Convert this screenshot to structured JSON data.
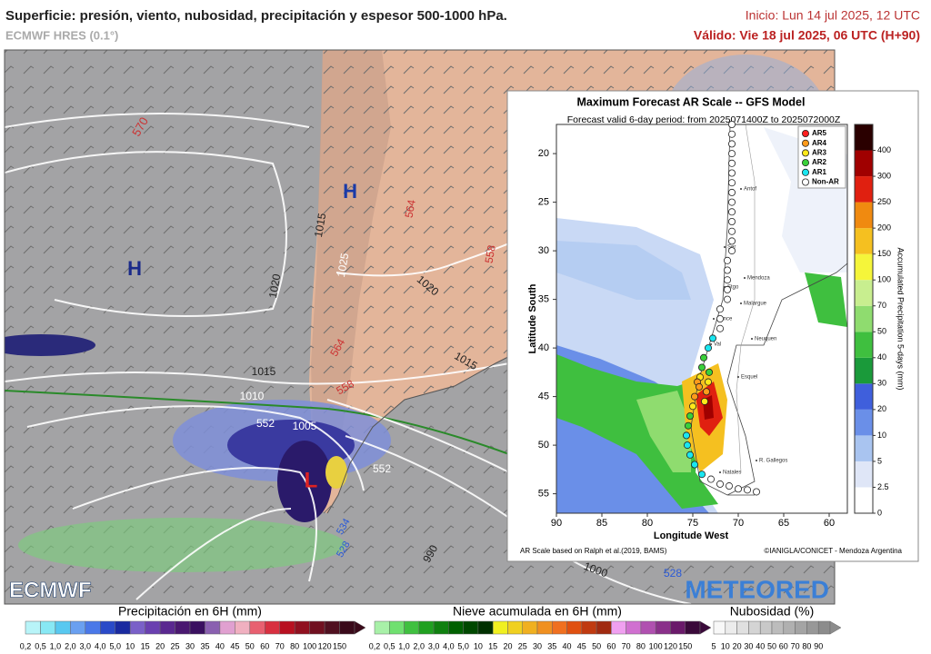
{
  "header": {
    "title": "Superficie: presión, viento, nubosidad, precipitación y espesor 500-1000 hPa.",
    "model": "ECMWF HRES (0.1°)",
    "init": "Inicio: Lun 14 jul 2025, 12 UTC",
    "valid": "Válido: Vie 18 jul 2025, 06 UTC (H+90)"
  },
  "map": {
    "labels": [
      "570",
      "H",
      "H",
      "1015",
      "564",
      "558",
      "1020",
      "1020",
      "1025",
      "1015",
      "1015",
      "1010",
      "552",
      "1005",
      "564",
      "558",
      "L",
      "552",
      "990",
      "1000",
      "528",
      "534",
      "528"
    ]
  },
  "logos": {
    "left": "ECMWF",
    "right": "METEORED"
  },
  "legends": [
    {
      "title": "Precipitación en 6H (mm)",
      "labels": [
        "0,2",
        "0,5",
        "1,0",
        "2,0",
        "3,0",
        "4,0",
        "5,0",
        "10",
        "15",
        "20",
        "25",
        "30",
        "35",
        "40",
        "45",
        "50",
        "60",
        "70",
        "80",
        "100",
        "120",
        "150"
      ]
    },
    {
      "title": "Nieve acumulada en 6H (mm)",
      "labels": [
        "0,2",
        "0,5",
        "1,0",
        "2,0",
        "3,0",
        "4,0",
        "5,0",
        "10",
        "15",
        "20",
        "25",
        "30",
        "35",
        "40",
        "45",
        "50",
        "60",
        "70",
        "80",
        "100",
        "120",
        "150"
      ]
    },
    {
      "title": "Nubosidad (%)",
      "labels": [
        "5",
        "10",
        "20",
        "30",
        "40",
        "50",
        "60",
        "70",
        "80",
        "90"
      ]
    }
  ],
  "inset": {
    "title": "Maximum Forecast AR Scale -- GFS Model",
    "subtitle": "Forecast valid 6-day period: from 2025071400Z to 2025072000Z",
    "xlabel": "Longitude West",
    "ylabel": "Latitude South",
    "xlim": [
      90,
      58
    ],
    "ylim": [
      17,
      57
    ],
    "xticks": [
      90,
      85,
      80,
      75,
      70,
      65,
      60
    ],
    "yticks": [
      20,
      25,
      30,
      35,
      40,
      45,
      50,
      55
    ],
    "colorbar": {
      "label": "Accumulated Precipitation 5-days (mm)",
      "ticks": [
        0,
        2.5,
        5,
        10,
        20,
        30,
        40,
        50,
        70,
        100,
        150,
        200,
        250,
        300,
        400
      ],
      "colors": [
        "#ffffff",
        "#dfe6f7",
        "#a9c4f0",
        "#6a8fe8",
        "#3f5fdc",
        "#1a9a3a",
        "#3fbf3f",
        "#8fdc6f",
        "#c8ee8f",
        "#f5f53a",
        "#f5c020",
        "#f08a10",
        "#e02010",
        "#a00000",
        "#2a0000"
      ]
    },
    "legend": [
      {
        "label": "AR5",
        "ar": 5,
        "color": "#ff2020"
      },
      {
        "label": "AR4",
        "ar": 4,
        "color": "#ff9a1a"
      },
      {
        "label": "AR3",
        "ar": 3,
        "color": "#ffe81a"
      },
      {
        "label": "AR2",
        "ar": 2,
        "color": "#3ad03a"
      },
      {
        "label": "AR1",
        "ar": 1,
        "color": "#1ae6f0"
      },
      {
        "label": "Non-AR",
        "ar": 0,
        "color": "#ffffff"
      }
    ],
    "cities": [
      "Antof",
      "Ser",
      "Mendoza",
      "Stgo",
      "Malargue",
      "Conce",
      "Neuquen",
      "Val",
      "Esquel",
      "Natales",
      "R. Gallegos"
    ],
    "points": {
      "lat": [
        17,
        18,
        19,
        20,
        21,
        22,
        23,
        24,
        25,
        26,
        27,
        28,
        29,
        30,
        31,
        32,
        33,
        34,
        35,
        36,
        37,
        38,
        39,
        40,
        41,
        42,
        43,
        43.5,
        44,
        45,
        46,
        47,
        48,
        49,
        50,
        51,
        52,
        53,
        53.5,
        54,
        54.2,
        54.5,
        54.6,
        54.8,
        42.5,
        43.5,
        44.5,
        45.5
      ],
      "lon": [
        70.7,
        70.7,
        70.7,
        70.7,
        70.7,
        70.7,
        70.7,
        70.7,
        70.7,
        70.7,
        70.7,
        70.7,
        70.7,
        70.7,
        71.2,
        71.2,
        71.2,
        71.2,
        71.2,
        72,
        72,
        72,
        72.8,
        73.3,
        73.8,
        74,
        74.2,
        74.5,
        74.3,
        74.8,
        75,
        75.3,
        75.5,
        75.7,
        75.6,
        75.3,
        74.8,
        74,
        73,
        72,
        71,
        70,
        69,
        68,
        73.2,
        73.3,
        73.5,
        73.7
      ],
      "ar": [
        0,
        0,
        0,
        0,
        0,
        0,
        0,
        0,
        0,
        0,
        0,
        0,
        0,
        0,
        0,
        0,
        0,
        0,
        0,
        0,
        0,
        0,
        1,
        1,
        2,
        2,
        3,
        4,
        4,
        4,
        3,
        2,
        2,
        1,
        1,
        1,
        1,
        1,
        0,
        0,
        0,
        0,
        0,
        0,
        2,
        3,
        4,
        3
      ]
    },
    "credit_left": "AR Scale based on Ralph et al.(2019, BAMS)",
    "credit_right": "©IANIGLA/CONICET - Mendoza Argentina"
  }
}
